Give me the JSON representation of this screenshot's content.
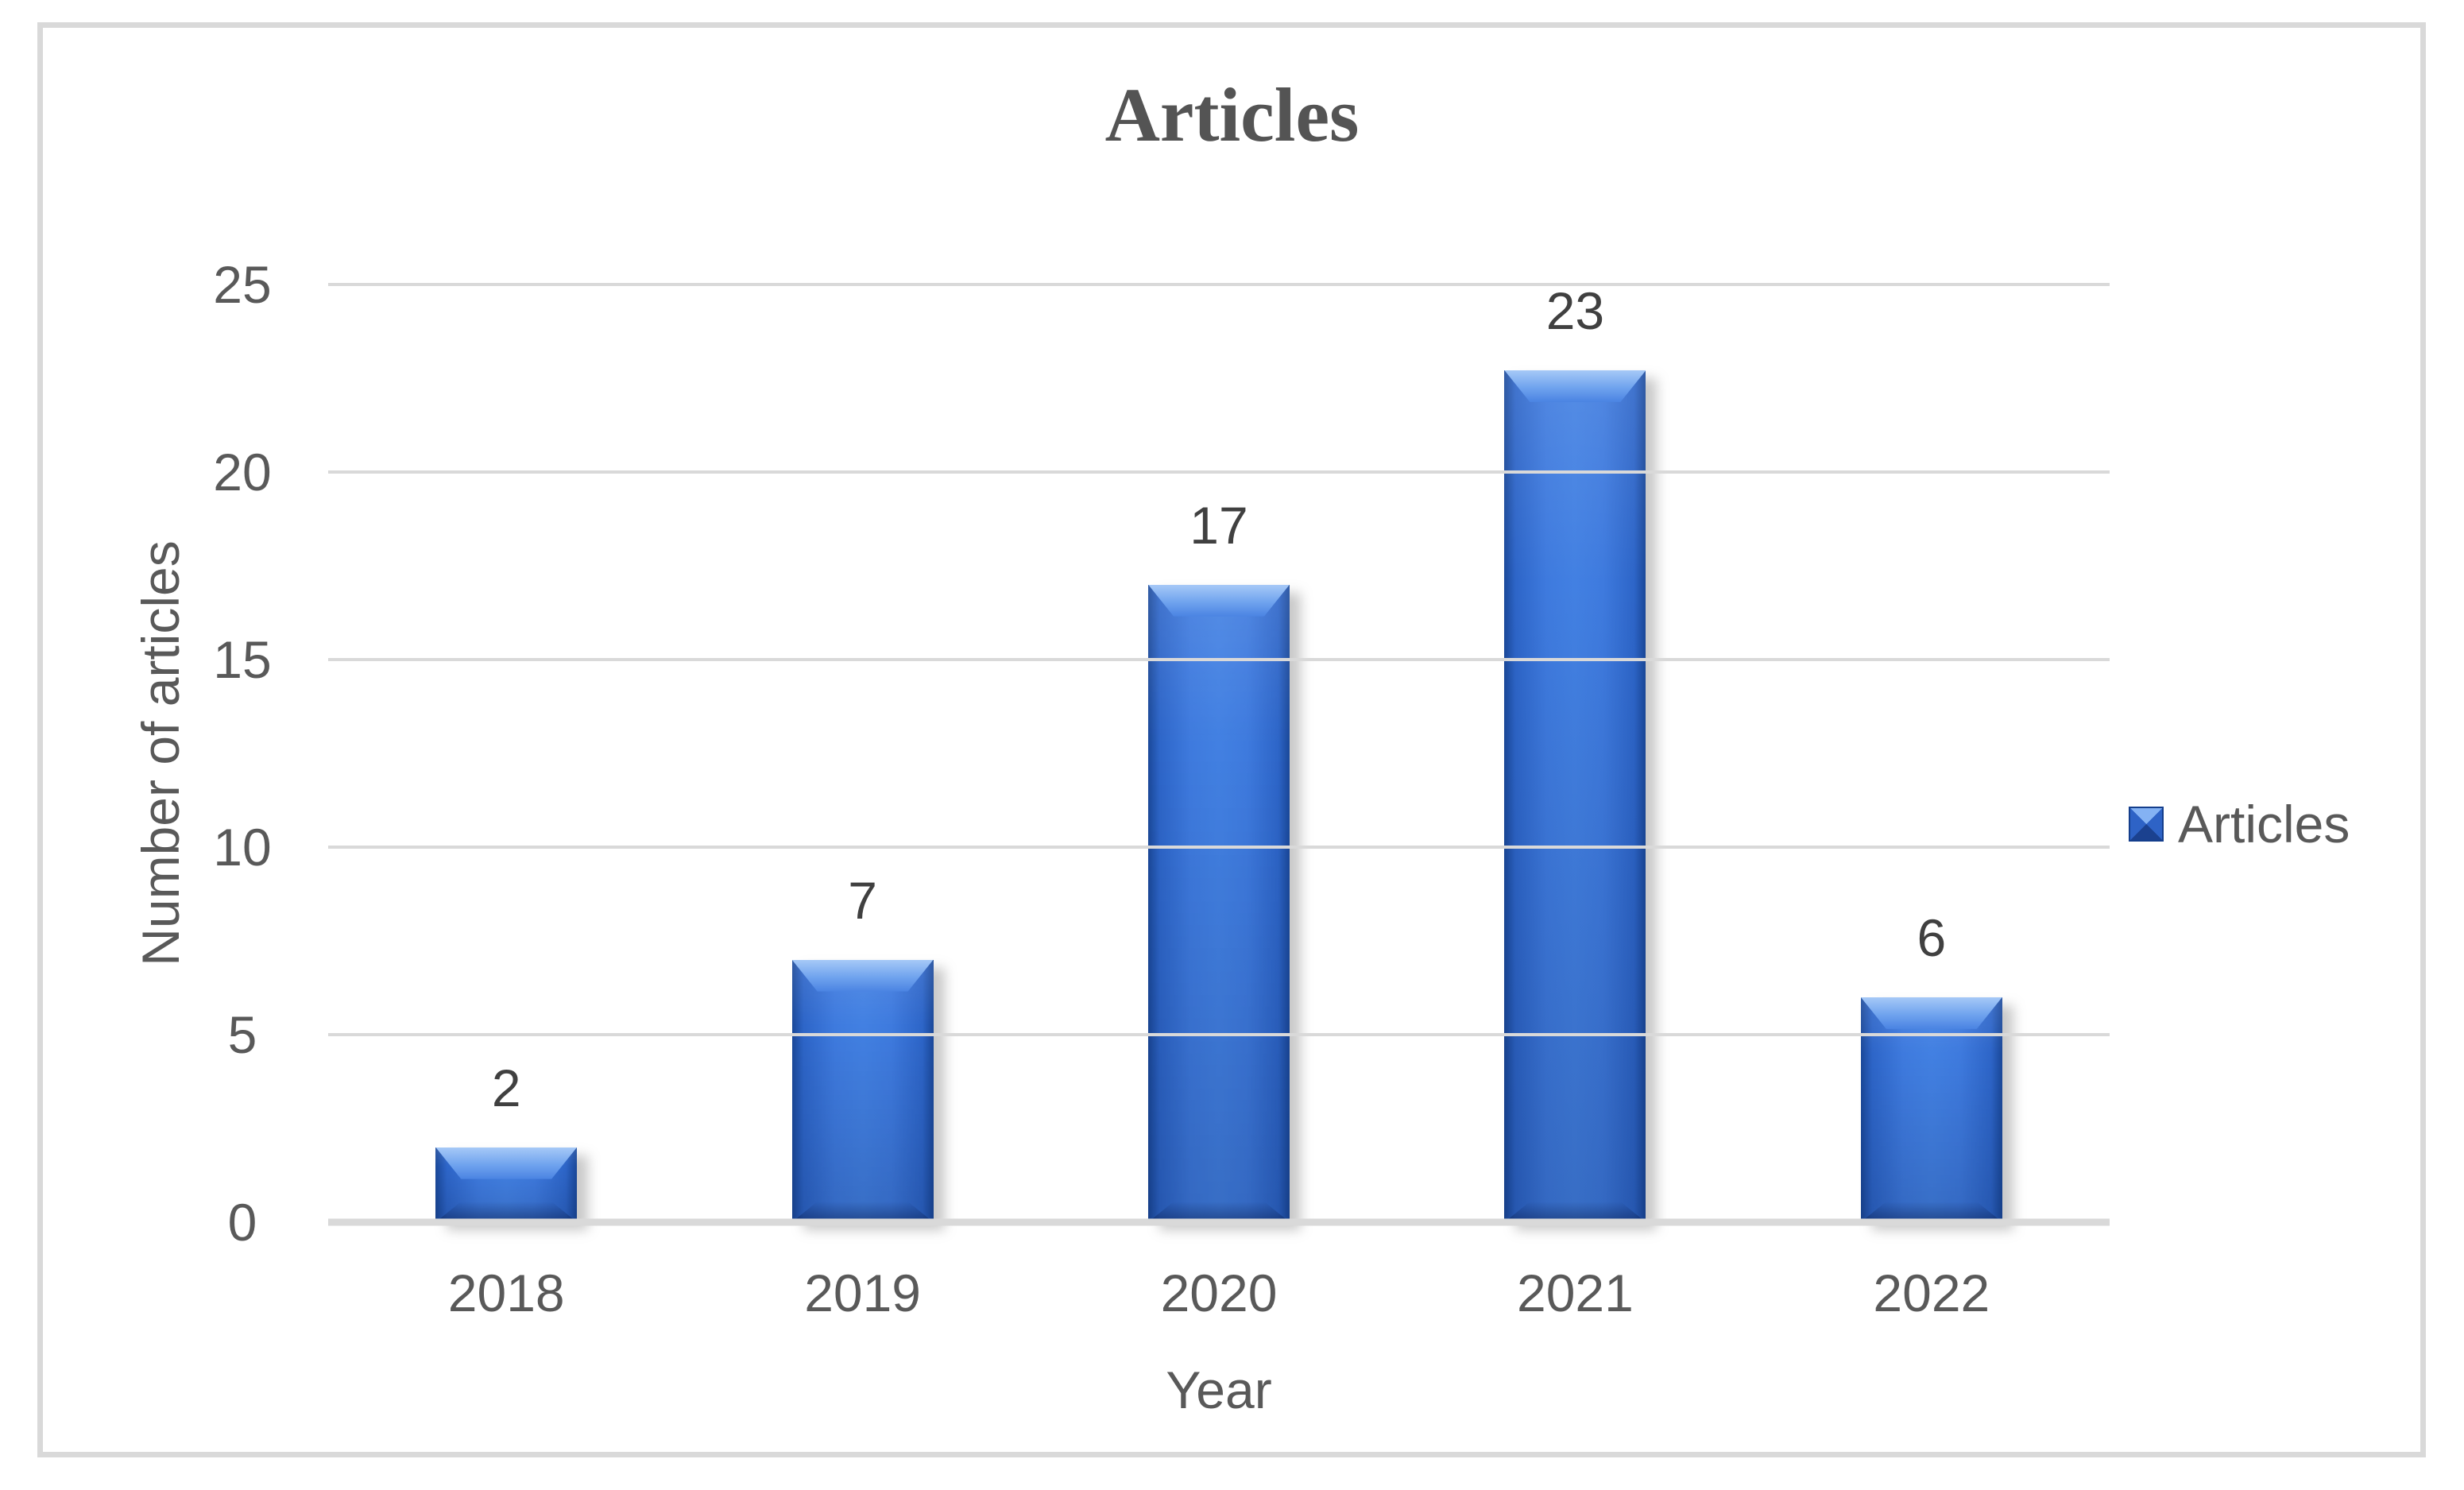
{
  "chart_data": {
    "type": "bar",
    "title": "Articles",
    "categories": [
      "2018",
      "2019",
      "2020",
      "2021",
      "2022"
    ],
    "values": [
      2,
      7,
      17,
      23,
      6
    ],
    "series": [
      {
        "name": "Articles",
        "values": [
          2,
          7,
          17,
          23,
          6
        ]
      }
    ],
    "xlabel": "Year",
    "ylabel": "Number of articles",
    "ylim": [
      0,
      25
    ],
    "yticks": [
      0,
      5,
      10,
      15,
      20,
      25
    ],
    "grid": true,
    "data_labels_shown": true,
    "legend": {
      "position": "right",
      "entries": [
        "Articles"
      ]
    },
    "colors": {
      "bar_fill": "#3e7ade",
      "bar_edge_dark": "#1a4899",
      "bar_bevel_highlight": "#a6c9f7",
      "gridline": "#d9d9d9",
      "frame_border": "#d9d9d9",
      "axis_text": "#595959",
      "data_label_text": "#404040",
      "title_text": "#545454"
    }
  }
}
